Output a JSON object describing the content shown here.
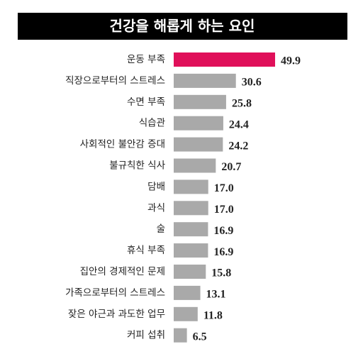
{
  "chart_data": {
    "type": "bar",
    "orientation": "horizontal",
    "title": "건강을 해롭게 하는 요인",
    "categories": [
      "운동 부족",
      "직장으로부터의 스트레스",
      "수면 부족",
      "식습관",
      "사회적인 불안감 증대",
      "불규칙한 식사",
      "담배",
      "과식",
      "술",
      "휴식 부족",
      "집안의 경제적인 문제",
      "가족으로부터의 스트레스",
      "잦은 야근과 과도한 업무",
      "커피 섭취"
    ],
    "values": [
      49.9,
      30.6,
      25.8,
      24.4,
      24.2,
      20.7,
      17.0,
      17.0,
      16.9,
      16.9,
      15.8,
      13.1,
      11.8,
      6.5
    ],
    "value_labels": [
      "49.9",
      "30.6",
      "25.8",
      "24.4",
      "24.2",
      "20.7",
      "17.0",
      "17.0",
      "16.9",
      "16.9",
      "15.8",
      "13.1",
      "11.8",
      "6.5"
    ],
    "colors": [
      "#e0105a",
      "#a9a9a9",
      "#a9a9a9",
      "#a9a9a9",
      "#a9a9a9",
      "#a9a9a9",
      "#a9a9a9",
      "#a9a9a9",
      "#a9a9a9",
      "#a9a9a9",
      "#a9a9a9",
      "#a9a9a9",
      "#a9a9a9",
      "#a9a9a9"
    ]
  }
}
